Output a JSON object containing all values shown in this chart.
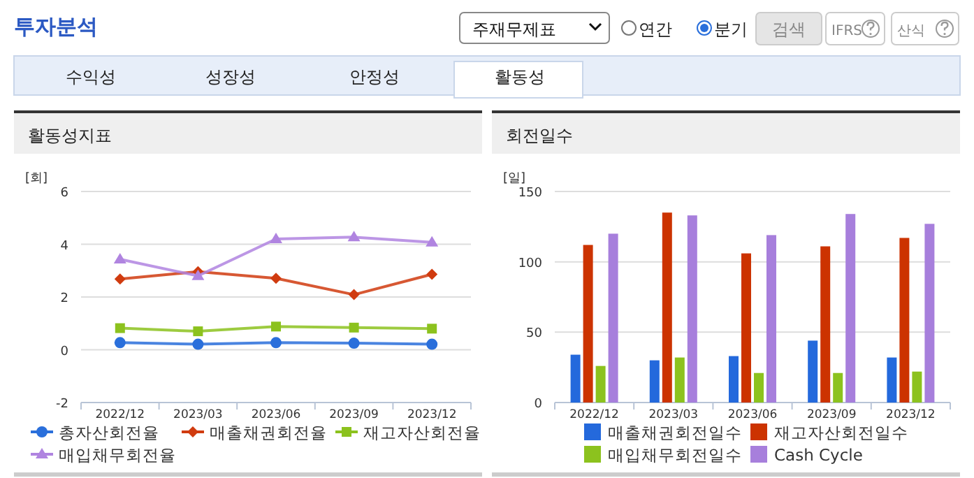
{
  "chart_data": [
    {
      "type": "other",
      "title": "투자분석",
      "annotations": [
        "주재무제표",
        "연간",
        "분기",
        "검색",
        "IFRS",
        "산식",
        "수익성",
        "성장성",
        "안정성",
        "활동성"
      ]
    },
    {
      "type": "line",
      "title": "활동성지표",
      "ylabel": "[회]",
      "categories": [
        "2022/12",
        "2023/03",
        "2023/06",
        "2023/09",
        "2023/12"
      ],
      "ylim": [
        -2,
        6
      ],
      "yticks": [
        -2,
        0,
        2,
        4,
        6
      ],
      "grid": "y",
      "legend": "bottom",
      "series": [
        {
          "name": "총자산회전율",
          "color": "#2a6fdb",
          "marker": "circle",
          "values": [
            0.27,
            0.21,
            0.27,
            0.25,
            0.21
          ]
        },
        {
          "name": "매출채권회전율",
          "color": "#d03b0f",
          "marker": "diamond",
          "values": [
            2.68,
            2.96,
            2.71,
            2.09,
            2.86
          ]
        },
        {
          "name": "재고자산회전율",
          "color": "#8cc21e",
          "marker": "square",
          "values": [
            0.82,
            0.7,
            0.88,
            0.84,
            0.8
          ]
        },
        {
          "name": "매입채무회전율",
          "color": "#b084e0",
          "marker": "triangle",
          "values": [
            3.43,
            2.8,
            4.2,
            4.27,
            4.07
          ]
        }
      ]
    },
    {
      "type": "bar",
      "title": "회전일수",
      "ylabel": "[일]",
      "categories": [
        "2022/12",
        "2023/03",
        "2023/06",
        "2023/09",
        "2023/12"
      ],
      "ylim": [
        0,
        150
      ],
      "yticks": [
        0,
        50,
        100,
        150
      ],
      "grid": "y",
      "legend": "bottom",
      "series": [
        {
          "name": "매출채권회전일수",
          "color": "#2469dc",
          "values": [
            34,
            30,
            33,
            44,
            32
          ]
        },
        {
          "name": "재고자산회전일수",
          "color": "#cc3300",
          "values": [
            112,
            135,
            106,
            111,
            117
          ]
        },
        {
          "name": "매입채무회전일수",
          "color": "#8cc21e",
          "values": [
            26,
            32,
            21,
            21,
            22
          ]
        },
        {
          "name": "Cash Cycle",
          "color": "#a77fdc",
          "values": [
            120,
            133,
            119,
            134,
            127
          ]
        }
      ]
    }
  ]
}
